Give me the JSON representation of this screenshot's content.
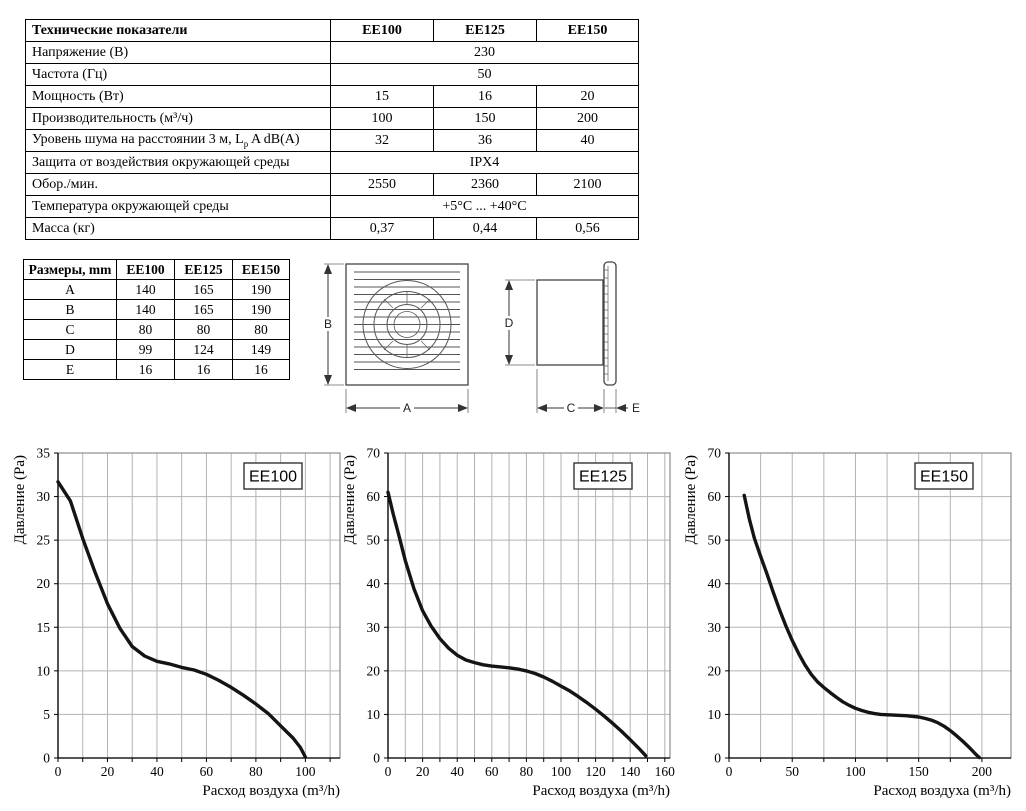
{
  "accent_colors": {
    "line": "#141414",
    "grid": "#b3b3b3",
    "border": "#8c8c8c",
    "ink": "#000000"
  },
  "spec_table": {
    "title": "Технические показатели",
    "models": [
      "EE100",
      "EE125",
      "EE150"
    ],
    "rows": [
      {
        "label": "Напряжение (В)",
        "span": "230"
      },
      {
        "label": "Частота (Гц)",
        "span": "50"
      },
      {
        "label": "Мощность (Вт)",
        "values": [
          "15",
          "16",
          "20"
        ]
      },
      {
        "label": "Производительность (м³/ч)",
        "values": [
          "100",
          "150",
          "200"
        ]
      },
      {
        "label_pre": "Уровень шума на расстоянии 3 м, L",
        "label_sub": "p",
        "label_post": " A  dB(A)",
        "values": [
          "32",
          "36",
          "40"
        ]
      },
      {
        "label": "Защита от воздействия окружающей среды",
        "span": "IPX4"
      },
      {
        "label": "Обор./мин.",
        "values": [
          "2550",
          "2360",
          "2100"
        ]
      },
      {
        "label": "Температура окружающей среды",
        "span": "+5°C ... +40°C"
      },
      {
        "label": "Масса (кг)",
        "values": [
          "0,37",
          "0,44",
          "0,56"
        ]
      }
    ]
  },
  "dim_table": {
    "title": "Размеры, mm",
    "models": [
      "EE100",
      "EE125",
      "EE150"
    ],
    "rows": [
      {
        "label": "A",
        "values": [
          "140",
          "165",
          "190"
        ]
      },
      {
        "label": "B",
        "values": [
          "140",
          "165",
          "190"
        ]
      },
      {
        "label": "C",
        "values": [
          "80",
          "80",
          "80"
        ]
      },
      {
        "label": "D",
        "values": [
          "99",
          "124",
          "149"
        ]
      },
      {
        "label": "E",
        "values": [
          "16",
          "16",
          "16"
        ]
      }
    ]
  },
  "drawings": {
    "front_view": {
      "width_label": "A",
      "height_label": "B"
    },
    "side_view": {
      "length_label": "C",
      "diameter_label": "D",
      "flange_label": "E"
    }
  },
  "chart_data": [
    {
      "type": "line",
      "title": "EE100",
      "xlabel": "Расход воздуха (m³/h)",
      "ylabel": "Давление (Pa)",
      "xlim": [
        0,
        114
      ],
      "ylim": [
        0,
        35
      ],
      "x_grid_step": 10,
      "y_grid_step": 5,
      "xticks": [
        0,
        20,
        40,
        60,
        80,
        100
      ],
      "yticks": [
        0,
        5,
        10,
        15,
        20,
        25,
        30,
        35
      ],
      "grid": true,
      "legend": "none",
      "points": [
        [
          0,
          31.7
        ],
        [
          5,
          29.5
        ],
        [
          10,
          25.2
        ],
        [
          15,
          21.3
        ],
        [
          20,
          17.7
        ],
        [
          25,
          14.9
        ],
        [
          30,
          12.8
        ],
        [
          35,
          11.7
        ],
        [
          40,
          11.1
        ],
        [
          45,
          10.8
        ],
        [
          50,
          10.4
        ],
        [
          55,
          10.1
        ],
        [
          60,
          9.6
        ],
        [
          65,
          8.9
        ],
        [
          70,
          8.1
        ],
        [
          75,
          7.2
        ],
        [
          80,
          6.2
        ],
        [
          85,
          5.1
        ],
        [
          90,
          3.7
        ],
        [
          95,
          2.3
        ],
        [
          98,
          1.2
        ],
        [
          100,
          0.1
        ]
      ]
    },
    {
      "type": "line",
      "title": "EE125",
      "xlabel": "Расход воздуха (m³/h)",
      "ylabel": "Давление (Pa)",
      "xlim": [
        0,
        163
      ],
      "ylim": [
        0,
        70
      ],
      "x_grid_step": 10,
      "y_grid_step": 10,
      "xticks": [
        0,
        20,
        40,
        60,
        80,
        100,
        120,
        140,
        160
      ],
      "yticks": [
        0,
        10,
        20,
        30,
        40,
        50,
        60,
        70
      ],
      "grid": true,
      "legend": "none",
      "points": [
        [
          0,
          61
        ],
        [
          3,
          56
        ],
        [
          6,
          51.5
        ],
        [
          10,
          45.3
        ],
        [
          15,
          38.8
        ],
        [
          20,
          33.8
        ],
        [
          25,
          30.2
        ],
        [
          30,
          27.4
        ],
        [
          35,
          25.2
        ],
        [
          40,
          23.6
        ],
        [
          45,
          22.5
        ],
        [
          50,
          21.9
        ],
        [
          55,
          21.4
        ],
        [
          60,
          21.1
        ],
        [
          65,
          20.9
        ],
        [
          70,
          20.7
        ],
        [
          75,
          20.4
        ],
        [
          80,
          20
        ],
        [
          85,
          19.4
        ],
        [
          90,
          18.6
        ],
        [
          95,
          17.6
        ],
        [
          100,
          16.5
        ],
        [
          105,
          15.4
        ],
        [
          110,
          14.1
        ],
        [
          115,
          12.7
        ],
        [
          120,
          11.2
        ],
        [
          125,
          9.6
        ],
        [
          130,
          7.9
        ],
        [
          135,
          6.1
        ],
        [
          140,
          4.2
        ],
        [
          145,
          2.2
        ],
        [
          149,
          0.5
        ]
      ]
    },
    {
      "type": "line",
      "title": "EE150",
      "xlabel": "Расход воздуха (m³/h)",
      "ylabel": "Давление (Pa)",
      "xlim": [
        0,
        223
      ],
      "ylim": [
        0,
        70
      ],
      "x_grid_step": 25,
      "y_grid_step": 10,
      "xticks": [
        0,
        50,
        100,
        150,
        200
      ],
      "yticks": [
        0,
        10,
        20,
        30,
        40,
        50,
        60,
        70
      ],
      "grid": true,
      "legend": "none",
      "points": [
        [
          12,
          60.3
        ],
        [
          16,
          55
        ],
        [
          20,
          50.5
        ],
        [
          25,
          46.3
        ],
        [
          30,
          42.3
        ],
        [
          35,
          38
        ],
        [
          40,
          34
        ],
        [
          45,
          30.3
        ],
        [
          50,
          27
        ],
        [
          55,
          24
        ],
        [
          60,
          21.4
        ],
        [
          65,
          19.2
        ],
        [
          70,
          17.5
        ],
        [
          75,
          16.2
        ],
        [
          80,
          15
        ],
        [
          85,
          13.9
        ],
        [
          90,
          12.9
        ],
        [
          95,
          12.1
        ],
        [
          100,
          11.4
        ],
        [
          105,
          10.9
        ],
        [
          110,
          10.5
        ],
        [
          115,
          10.2
        ],
        [
          120,
          10
        ],
        [
          130,
          9.85
        ],
        [
          140,
          9.7
        ],
        [
          150,
          9.4
        ],
        [
          155,
          9.1
        ],
        [
          160,
          8.7
        ],
        [
          165,
          8.1
        ],
        [
          170,
          7.3
        ],
        [
          175,
          6.3
        ],
        [
          180,
          5.1
        ],
        [
          185,
          3.8
        ],
        [
          190,
          2.4
        ],
        [
          195,
          0.9
        ],
        [
          198,
          0.1
        ]
      ]
    }
  ]
}
